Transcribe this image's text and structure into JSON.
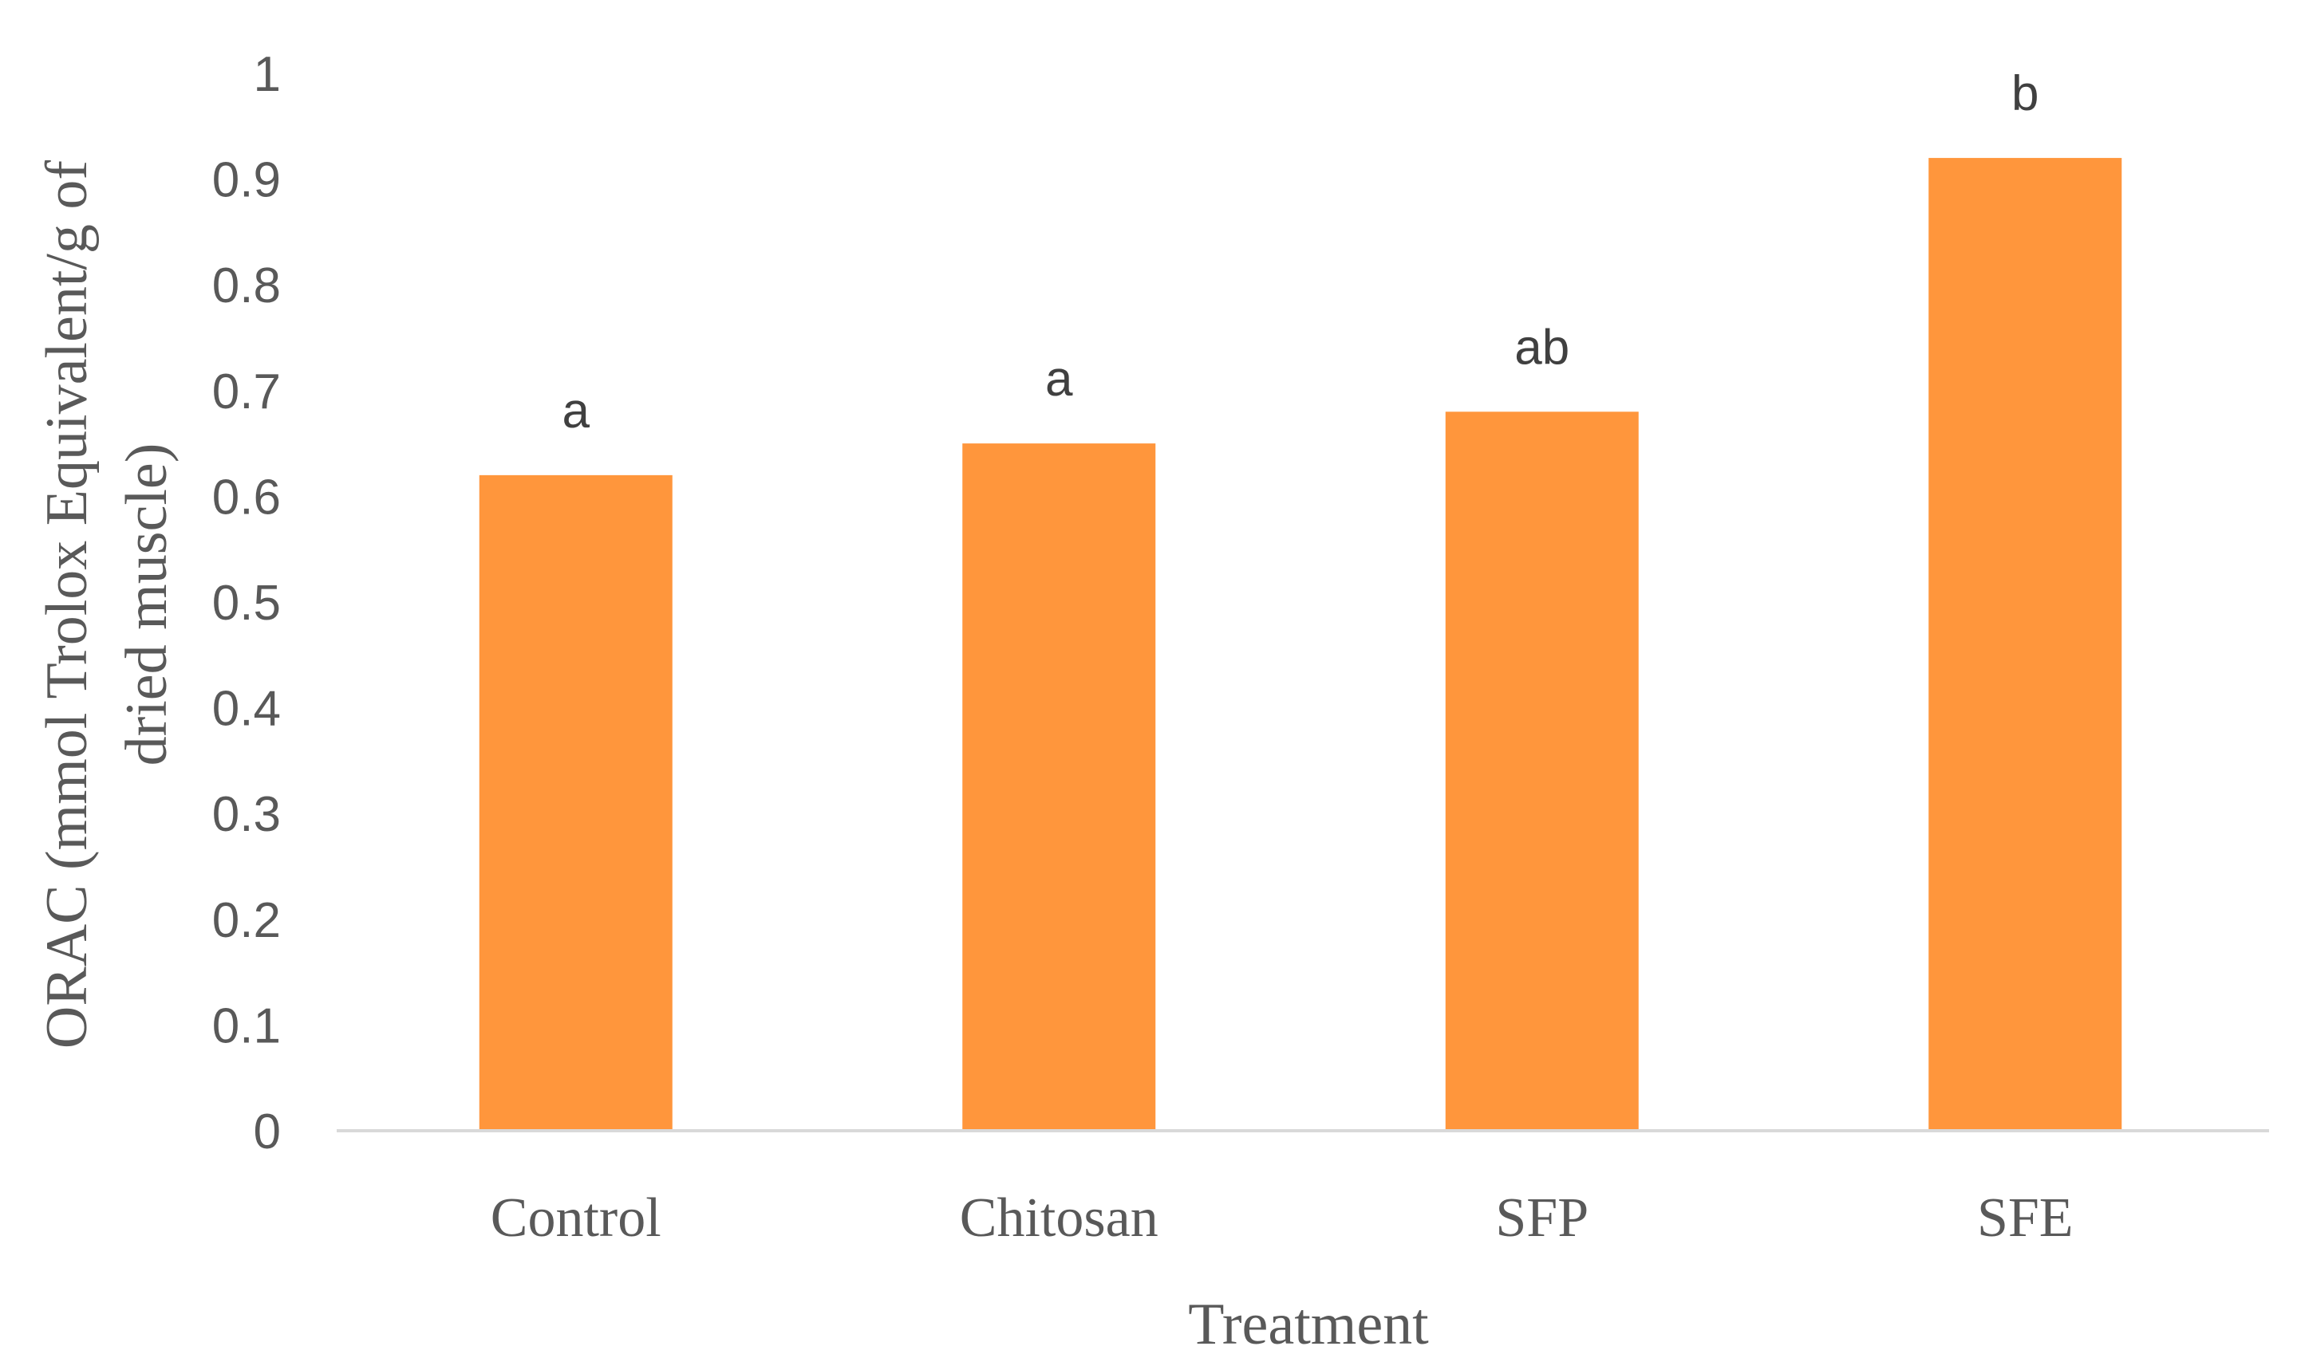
{
  "chart_data": {
    "type": "bar",
    "title": "",
    "xlabel": "Treatment",
    "ylabel_lines": [
      "ORAC (mmol Trolox Equivalent/g of",
      "dried muscle)"
    ],
    "categories": [
      "Control",
      "Chitosan",
      "SFP",
      "SFE"
    ],
    "values": [
      0.62,
      0.65,
      0.68,
      0.92
    ],
    "significance_labels": [
      "a",
      "a",
      "ab",
      "b"
    ],
    "ylim": [
      0,
      1
    ],
    "yticks": [
      "0",
      "0.1",
      "0.2",
      "0.3",
      "0.4",
      "0.5",
      "0.6",
      "0.7",
      "0.8",
      "0.9",
      "1"
    ],
    "grid": false,
    "legend": "none",
    "bar_color": "#FF963C",
    "axis_color": "#D9D9D9"
  }
}
